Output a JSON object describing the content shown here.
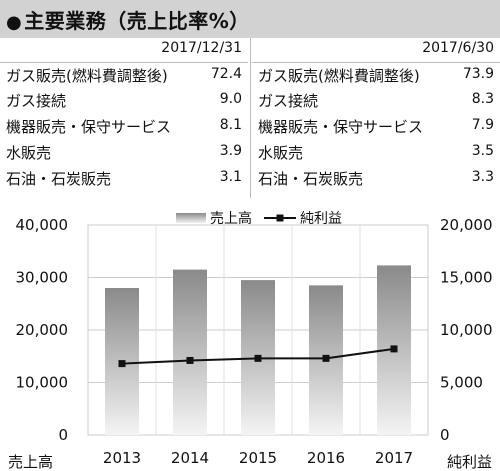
{
  "header": {
    "title": "主要業務（売上比率%）"
  },
  "table": {
    "left": {
      "date": "2017/12/31",
      "rows": [
        {
          "label": "ガス販売(燃料費調整後)",
          "value": "72.4"
        },
        {
          "label": "ガス接続",
          "value": "9.0"
        },
        {
          "label": "機器販売・保守サービス",
          "value": "8.1"
        },
        {
          "label": "水販売",
          "value": "3.9"
        },
        {
          "label": "石油・石炭販売",
          "value": "3.1"
        }
      ]
    },
    "right": {
      "date": "2017/6/30",
      "rows": [
        {
          "label": "ガス販売(燃料費調整後)",
          "value": "73.9"
        },
        {
          "label": "ガス接続",
          "value": "8.3"
        },
        {
          "label": "機器販売・保守サービス",
          "value": "7.9"
        },
        {
          "label": "水販売",
          "value": "3.5"
        },
        {
          "label": "石油・石炭販売",
          "value": "3.3"
        }
      ]
    }
  },
  "chart_data": {
    "type": "bar",
    "categories": [
      "2013",
      "2014",
      "2015",
      "2016",
      "2017"
    ],
    "series": [
      {
        "name": "売上高",
        "type": "bar",
        "axis": "left",
        "values": [
          28000,
          31500,
          29500,
          28500,
          32300
        ]
      },
      {
        "name": "純利益",
        "type": "line",
        "axis": "right",
        "values": [
          6800,
          7100,
          7300,
          7300,
          8200
        ]
      }
    ],
    "ylabel": "売上高",
    "y2label": "純利益",
    "ylim": [
      0,
      40000
    ],
    "y2lim": [
      0,
      20000
    ],
    "yticks": [
      "0",
      "10,000",
      "20,000",
      "30,000",
      "40,000"
    ],
    "y2ticks": [
      "0",
      "5,000",
      "10,000",
      "15,000",
      "20,000"
    ],
    "grid": true,
    "legend": "top-center",
    "colors": {
      "bar_top": "#8a8a8a",
      "bar_bottom": "#f4f4f4",
      "line": "#111111",
      "grid": "#cccccc"
    }
  }
}
